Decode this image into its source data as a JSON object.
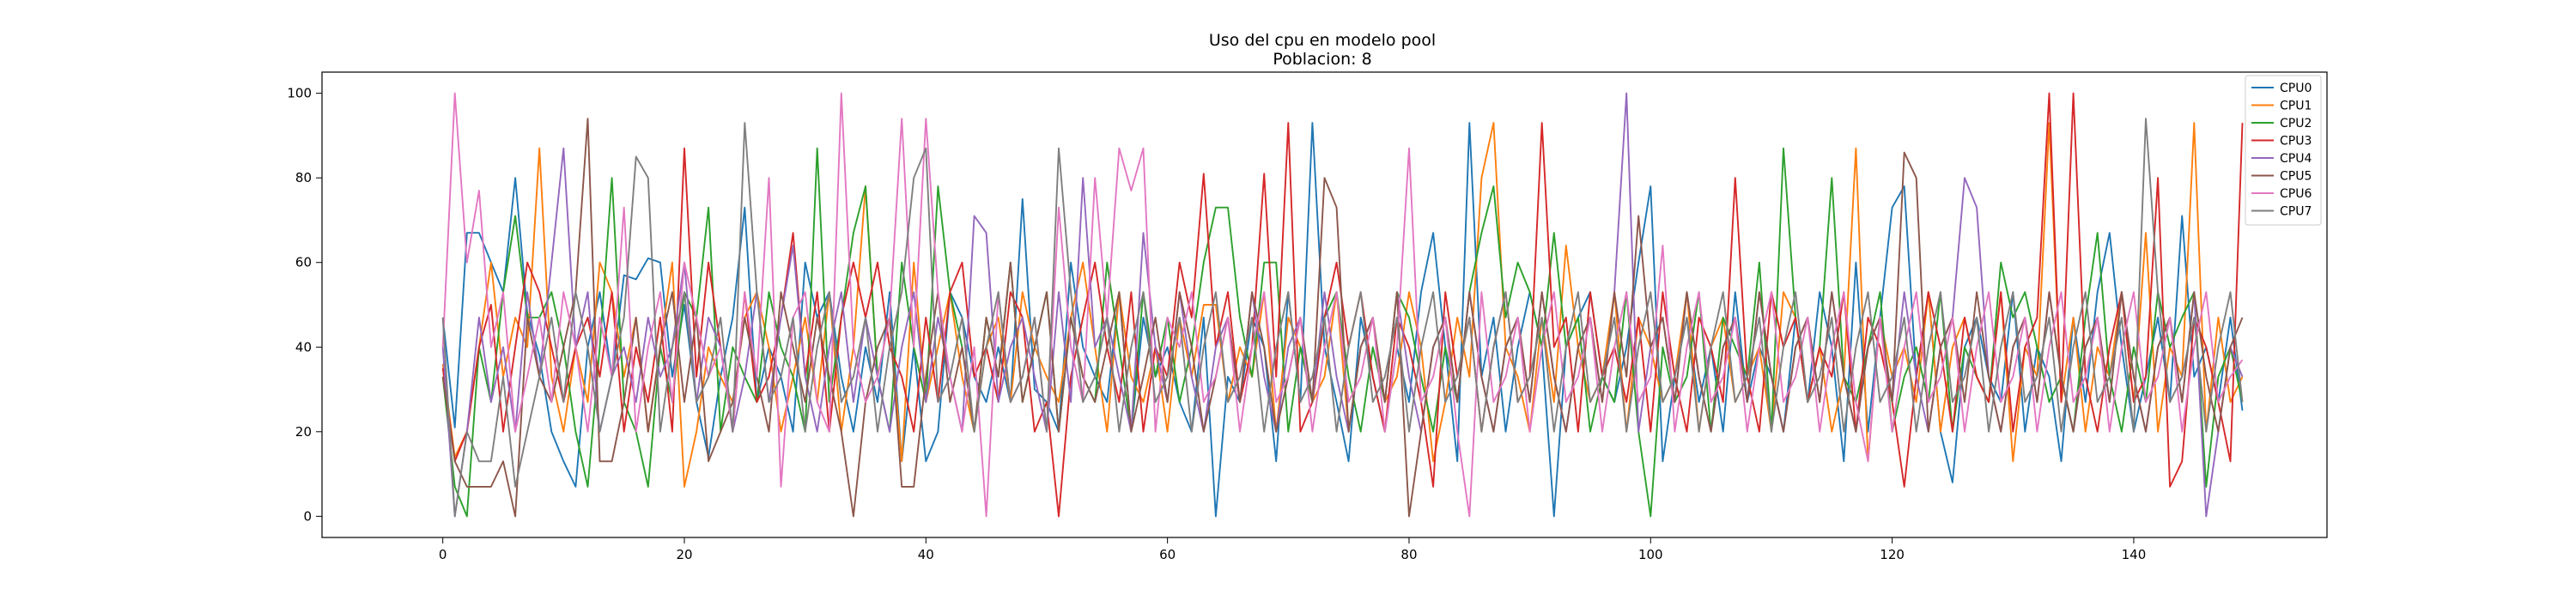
{
  "chart_data": {
    "type": "line",
    "title": "Uso del cpu en modelo pool",
    "subtitle": "Poblacion: 8",
    "xlabel": "",
    "ylabel": "",
    "xlim": [
      -10,
      156
    ],
    "ylim": [
      -5,
      105
    ],
    "x_ticks": [
      "0",
      "20",
      "40",
      "60",
      "80",
      "100",
      "120",
      "140"
    ],
    "y_ticks": [
      "0",
      "20",
      "40",
      "60",
      "80",
      "100"
    ],
    "grid": false,
    "legend_position": "top-right",
    "x": [
      0,
      1,
      2,
      3,
      4,
      5,
      6,
      7,
      8,
      9,
      10,
      11,
      12,
      13,
      14,
      15,
      16,
      17,
      18,
      19,
      20,
      21,
      22,
      23,
      24,
      25,
      26,
      27,
      28,
      29,
      30,
      31,
      32,
      33,
      34,
      35,
      36,
      37,
      38,
      39,
      40,
      41,
      42,
      43,
      44,
      45,
      46,
      47,
      48,
      49,
      50,
      51,
      52,
      53,
      54,
      55,
      56,
      57,
      58,
      59,
      60,
      61,
      62,
      63,
      64,
      65,
      66,
      67,
      68,
      69,
      70,
      71,
      72,
      73,
      74,
      75,
      76,
      77,
      78,
      79,
      80,
      81,
      82,
      83,
      84,
      85,
      86,
      87,
      88,
      89,
      90,
      91,
      92,
      93,
      94,
      95,
      96,
      97,
      98,
      99,
      100,
      101,
      102,
      103,
      104,
      105,
      106,
      107,
      108,
      109,
      110,
      111,
      112,
      113,
      114,
      115,
      116,
      117,
      118,
      119,
      120,
      121,
      122,
      123,
      124,
      125,
      126,
      127,
      128,
      129,
      130,
      131,
      132,
      133,
      134,
      135,
      136,
      137,
      138,
      139,
      140,
      141,
      142,
      143,
      144,
      145,
      146,
      147,
      148,
      149
    ],
    "series": [
      {
        "name": "CPU0",
        "color": "#1f77b4",
        "values": [
          47,
          21,
          67,
          67,
          60,
          53,
          80,
          48,
          38,
          20,
          13,
          7,
          40,
          53,
          33,
          57,
          56,
          61,
          60,
          33,
          50,
          27,
          14,
          33,
          47,
          73,
          27,
          40,
          33,
          20,
          60,
          47,
          53,
          33,
          20,
          40,
          27,
          53,
          13,
          40,
          13,
          20,
          53,
          47,
          33,
          27,
          40,
          27,
          75,
          30,
          27,
          20,
          60,
          40,
          33,
          27,
          53,
          20,
          47,
          33,
          40,
          27,
          20,
          47,
          0,
          33,
          27,
          47,
          40,
          13,
          53,
          27,
          93,
          40,
          27,
          13,
          47,
          33,
          20,
          40,
          27,
          53,
          67,
          40,
          13,
          93,
          33,
          47,
          20,
          40,
          53,
          40,
          0,
          40,
          47,
          53,
          33,
          27,
          40,
          60,
          78,
          13,
          33,
          47,
          27,
          40,
          20,
          53,
          27,
          40,
          33,
          20,
          47,
          27,
          53,
          40,
          13,
          60,
          20,
          47,
          73,
          78,
          33,
          53,
          20,
          8,
          40,
          47,
          33,
          27,
          53,
          20,
          40,
          33,
          13,
          47,
          27,
          53,
          67,
          40,
          20,
          33,
          47,
          27,
          71,
          33,
          40,
          27,
          47,
          25
        ]
      },
      {
        "name": "CPU1",
        "color": "#ff7f0e",
        "values": [
          36,
          14,
          20,
          40,
          60,
          33,
          47,
          40,
          87,
          33,
          20,
          40,
          27,
          60,
          53,
          33,
          47,
          20,
          40,
          60,
          7,
          20,
          40,
          33,
          27,
          47,
          53,
          40,
          20,
          33,
          47,
          27,
          53,
          20,
          40,
          78,
          33,
          47,
          13,
          60,
          27,
          40,
          53,
          33,
          20,
          40,
          47,
          27,
          53,
          40,
          33,
          27,
          47,
          60,
          40,
          20,
          53,
          33,
          27,
          40,
          20,
          47,
          33,
          50,
          50,
          27,
          40,
          33,
          53,
          20,
          47,
          40,
          27,
          33,
          53,
          20,
          40,
          47,
          27,
          33,
          53,
          40,
          13,
          27,
          47,
          33,
          80,
          93,
          40,
          33,
          20,
          47,
          27,
          64,
          40,
          27,
          33,
          53,
          20,
          47,
          40,
          27,
          33,
          53,
          20,
          40,
          47,
          27,
          33,
          40,
          20,
          53,
          47,
          27,
          40,
          20,
          33,
          87,
          13,
          47,
          33,
          40,
          27,
          53,
          20,
          40,
          47,
          33,
          27,
          53,
          13,
          40,
          33,
          93,
          27,
          47,
          20,
          40,
          33,
          53,
          27,
          67,
          20,
          40,
          33,
          93,
          20,
          47,
          27,
          33
        ]
      },
      {
        "name": "CPU2",
        "color": "#2ca02c",
        "values": [
          33,
          7,
          0,
          40,
          27,
          53,
          71,
          47,
          47,
          53,
          40,
          20,
          7,
          40,
          80,
          27,
          20,
          7,
          40,
          27,
          53,
          47,
          73,
          20,
          40,
          33,
          27,
          53,
          40,
          33,
          20,
          87,
          27,
          47,
          67,
          78,
          33,
          20,
          60,
          40,
          27,
          78,
          53,
          40,
          20,
          47,
          33,
          60,
          27,
          40,
          53,
          20,
          47,
          33,
          27,
          60,
          40,
          20,
          53,
          33,
          47,
          27,
          40,
          60,
          73,
          73,
          47,
          33,
          60,
          60,
          20,
          40,
          27,
          47,
          53,
          33,
          20,
          40,
          27,
          53,
          47,
          33,
          20,
          40,
          27,
          53,
          67,
          78,
          47,
          60,
          53,
          40,
          67,
          40,
          47,
          20,
          33,
          27,
          53,
          20,
          0,
          40,
          27,
          33,
          53,
          20,
          47,
          40,
          33,
          60,
          20,
          87,
          47,
          27,
          40,
          80,
          33,
          27,
          40,
          53,
          20,
          33,
          40,
          27,
          53,
          20,
          40,
          33,
          27,
          60,
          47,
          53,
          40,
          27,
          33,
          20,
          47,
          67,
          33,
          20,
          40,
          27,
          53,
          40,
          47,
          53,
          7,
          33,
          40,
          27
        ]
      },
      {
        "name": "CPU3",
        "color": "#d62728",
        "values": [
          35,
          13,
          20,
          40,
          50,
          20,
          40,
          60,
          53,
          40,
          27,
          40,
          47,
          33,
          53,
          20,
          40,
          27,
          47,
          20,
          87,
          33,
          60,
          40,
          20,
          53,
          27,
          33,
          47,
          67,
          33,
          53,
          20,
          47,
          60,
          47,
          60,
          40,
          33,
          20,
          47,
          27,
          53,
          60,
          33,
          40,
          27,
          53,
          47,
          20,
          27,
          0,
          33,
          47,
          60,
          40,
          27,
          53,
          20,
          40,
          33,
          60,
          47,
          81,
          40,
          53,
          27,
          40,
          81,
          33,
          93,
          20,
          27,
          47,
          60,
          40,
          53,
          33,
          20,
          47,
          40,
          27,
          7,
          53,
          33,
          47,
          20,
          40,
          53,
          27,
          33,
          93,
          40,
          47,
          20,
          53,
          33,
          40,
          27,
          47,
          20,
          53,
          33,
          20,
          47,
          40,
          27,
          80,
          33,
          20,
          53,
          40,
          47,
          27,
          40,
          33,
          53,
          20,
          47,
          40,
          27,
          7,
          33,
          53,
          40,
          20,
          47,
          33,
          27,
          53,
          20,
          40,
          47,
          100,
          27,
          100,
          33,
          20,
          40,
          53,
          27,
          33,
          80,
          7,
          13,
          47,
          40,
          27,
          13,
          93
        ]
      },
      {
        "name": "CPU4",
        "color": "#9467bd",
        "values": [
          40,
          0,
          20,
          47,
          27,
          40,
          20,
          53,
          33,
          60,
          87,
          40,
          53,
          20,
          33,
          40,
          27,
          47,
          33,
          40,
          60,
          27,
          47,
          40,
          20,
          33,
          53,
          27,
          47,
          64,
          33,
          20,
          40,
          53,
          27,
          47,
          33,
          20,
          40,
          53,
          27,
          47,
          33,
          20,
          71,
          67,
          27,
          40,
          47,
          33,
          20,
          53,
          27,
          80,
          40,
          47,
          33,
          20,
          67,
          40,
          27,
          53,
          33,
          20,
          40,
          47,
          27,
          53,
          33,
          20,
          40,
          47,
          27,
          53,
          33,
          20,
          40,
          47,
          27,
          53,
          33,
          20,
          40,
          47,
          27,
          53,
          33,
          20,
          40,
          47,
          27,
          53,
          33,
          20,
          40,
          47,
          27,
          53,
          100,
          20,
          40,
          47,
          27,
          53,
          33,
          20,
          40,
          47,
          27,
          53,
          33,
          20,
          40,
          47,
          27,
          53,
          33,
          20,
          40,
          47,
          27,
          53,
          33,
          20,
          40,
          47,
          80,
          73,
          33,
          20,
          40,
          47,
          27,
          53,
          33,
          20,
          40,
          47,
          27,
          53,
          33,
          20,
          40,
          47,
          27,
          53,
          0,
          20,
          40,
          33
        ]
      },
      {
        "name": "CPU5",
        "color": "#8c564b",
        "values": [
          33,
          13,
          7,
          7,
          7,
          13,
          0,
          47,
          33,
          27,
          40,
          53,
          94,
          13,
          13,
          27,
          47,
          20,
          40,
          53,
          27,
          47,
          13,
          20,
          27,
          47,
          33,
          20,
          53,
          40,
          27,
          47,
          33,
          20,
          0,
          27,
          40,
          47,
          7,
          7,
          33,
          53,
          27,
          40,
          20,
          47,
          33,
          60,
          27,
          40,
          53,
          20,
          47,
          33,
          27,
          40,
          53,
          20,
          33,
          47,
          27,
          53,
          40,
          20,
          33,
          47,
          27,
          53,
          40,
          20,
          33,
          47,
          27,
          80,
          73,
          20,
          40,
          47,
          27,
          53,
          0,
          20,
          40,
          47,
          27,
          53,
          33,
          20,
          40,
          47,
          27,
          53,
          33,
          20,
          40,
          47,
          27,
          53,
          33,
          71,
          40,
          47,
          27,
          53,
          33,
          20,
          40,
          47,
          27,
          53,
          33,
          20,
          40,
          47,
          27,
          53,
          33,
          20,
          40,
          47,
          27,
          86,
          80,
          20,
          40,
          47,
          27,
          53,
          33,
          20,
          40,
          47,
          27,
          53,
          33,
          20,
          40,
          47,
          27,
          53,
          33,
          20,
          40,
          47,
          27,
          53,
          33,
          20,
          40,
          47
        ]
      },
      {
        "name": "CPU6",
        "color": "#e377c2",
        "values": [
          40,
          100,
          60,
          77,
          40,
          53,
          20,
          33,
          47,
          27,
          53,
          40,
          20,
          47,
          33,
          73,
          20,
          40,
          53,
          27,
          60,
          47,
          33,
          40,
          20,
          53,
          33,
          80,
          7,
          47,
          53,
          27,
          20,
          100,
          40,
          27,
          33,
          47,
          94,
          40,
          94,
          53,
          33,
          20,
          40,
          0,
          53,
          27,
          33,
          47,
          20,
          73,
          40,
          27,
          80,
          47,
          87,
          77,
          87,
          20,
          47,
          40,
          53,
          27,
          33,
          47,
          20,
          40,
          53,
          27,
          33,
          47,
          20,
          40,
          53,
          27,
          33,
          47,
          20,
          40,
          87,
          27,
          33,
          47,
          20,
          0,
          53,
          27,
          33,
          47,
          20,
          40,
          53,
          27,
          33,
          47,
          20,
          40,
          53,
          27,
          33,
          64,
          20,
          40,
          53,
          27,
          33,
          47,
          20,
          40,
          53,
          27,
          33,
          47,
          20,
          40,
          53,
          27,
          13,
          47,
          20,
          40,
          53,
          27,
          33,
          47,
          20,
          40,
          53,
          27,
          33,
          47,
          20,
          40,
          53,
          27,
          33,
          47,
          20,
          40,
          53,
          27,
          33,
          47,
          20,
          40,
          53,
          27,
          33,
          37
        ]
      },
      {
        "name": "CPU7",
        "color": "#7f7f7f",
        "values": [
          47,
          0,
          20,
          13,
          13,
          33,
          7,
          20,
          33,
          47,
          27,
          53,
          40,
          20,
          33,
          47,
          85,
          80,
          20,
          40,
          53,
          27,
          33,
          47,
          20,
          93,
          53,
          27,
          33,
          47,
          20,
          40,
          53,
          27,
          33,
          47,
          20,
          40,
          53,
          80,
          87,
          27,
          33,
          47,
          20,
          40,
          53,
          27,
          33,
          47,
          20,
          87,
          53,
          27,
          33,
          47,
          20,
          40,
          53,
          27,
          33,
          47,
          20,
          40,
          53,
          27,
          33,
          47,
          20,
          40,
          53,
          27,
          33,
          47,
          20,
          40,
          53,
          27,
          33,
          47,
          20,
          40,
          53,
          27,
          33,
          47,
          20,
          40,
          53,
          27,
          33,
          47,
          20,
          40,
          53,
          27,
          33,
          47,
          20,
          40,
          53,
          27,
          33,
          47,
          20,
          40,
          53,
          27,
          33,
          47,
          20,
          40,
          53,
          27,
          33,
          47,
          20,
          40,
          53,
          27,
          33,
          47,
          20,
          40,
          53,
          27,
          33,
          47,
          20,
          40,
          53,
          27,
          33,
          47,
          20,
          40,
          53,
          27,
          33,
          47,
          20,
          94,
          53,
          27,
          33,
          47,
          20,
          40,
          53,
          27
        ]
      }
    ]
  }
}
